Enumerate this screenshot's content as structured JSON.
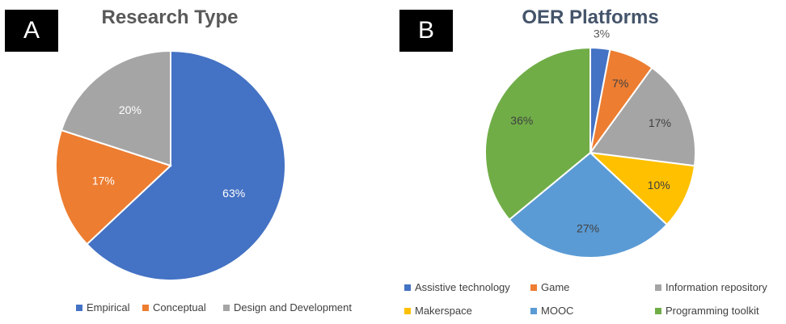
{
  "panels": {
    "a": {
      "label": "A"
    },
    "b": {
      "label": "B"
    }
  },
  "chart_data": [
    {
      "type": "pie",
      "title": "Research Type",
      "slices": [
        {
          "label": "Empirical",
          "value": 63,
          "display": "63%",
          "color": "#4472C4"
        },
        {
          "label": "Conceptual",
          "value": 17,
          "display": "17%",
          "color": "#ED7D31"
        },
        {
          "label": "Design and Development",
          "value": 20,
          "display": "20%",
          "color": "#A5A5A5"
        }
      ],
      "legend_position": "bottom"
    },
    {
      "type": "pie",
      "title": "OER Platforms",
      "slices": [
        {
          "label": "Assistive technology",
          "value": 3,
          "display": "3%",
          "color": "#4472C4"
        },
        {
          "label": "Game",
          "value": 7,
          "display": "7%",
          "color": "#ED7D31"
        },
        {
          "label": "Information repository",
          "value": 17,
          "display": "17%",
          "color": "#A5A5A5"
        },
        {
          "label": "Makerspace",
          "value": 10,
          "display": "10%",
          "color": "#FFC000"
        },
        {
          "label": "MOOC",
          "value": 27,
          "display": "27%",
          "color": "#5B9BD5"
        },
        {
          "label": "Programming toolkit",
          "value": 36,
          "display": "36%",
          "color": "#70AD47"
        }
      ],
      "legend_position": "bottom"
    }
  ]
}
